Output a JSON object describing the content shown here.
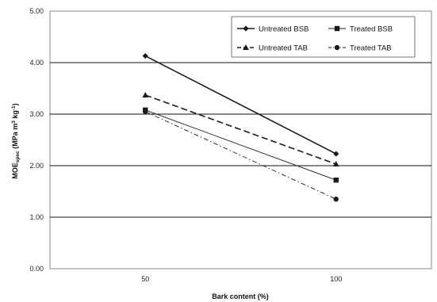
{
  "chart_data": {
    "type": "line",
    "categories": [
      "50",
      "100"
    ],
    "x": [
      50,
      100
    ],
    "xlabel": "Bark content (%)",
    "ylabel_main": "MOE",
    "ylabel_sub": "spec",
    "ylabel_unit_open": " (MPa m",
    "ylabel_sup1": "3",
    "ylabel_unit_mid": " kg",
    "ylabel_sup2": "-1",
    "ylabel_unit_close": ")",
    "ylim": [
      0,
      5
    ],
    "yticks": [
      "0.00",
      "1.00",
      "2.00",
      "3.00",
      "4.00",
      "5.00"
    ],
    "grid": true,
    "legend_position": "top-right",
    "series": [
      {
        "name": "Untreated BSB",
        "values": [
          4.13,
          2.23
        ],
        "marker": "diamond",
        "style": "solid",
        "width": 1.6,
        "color": "#1a1a1a"
      },
      {
        "name": "Treated BSB",
        "values": [
          3.08,
          1.72
        ],
        "marker": "square",
        "style": "solid",
        "width": 0.9,
        "color": "#1a1a1a"
      },
      {
        "name": "Untreated TAB",
        "values": [
          3.37,
          2.03
        ],
        "marker": "triangle",
        "style": "dashed",
        "width": 1.6,
        "color": "#1a1a1a"
      },
      {
        "name": "Treated TAB",
        "values": [
          3.05,
          1.35
        ],
        "marker": "circle",
        "style": "dashdot",
        "width": 0.9,
        "color": "#1a1a1a"
      }
    ]
  }
}
